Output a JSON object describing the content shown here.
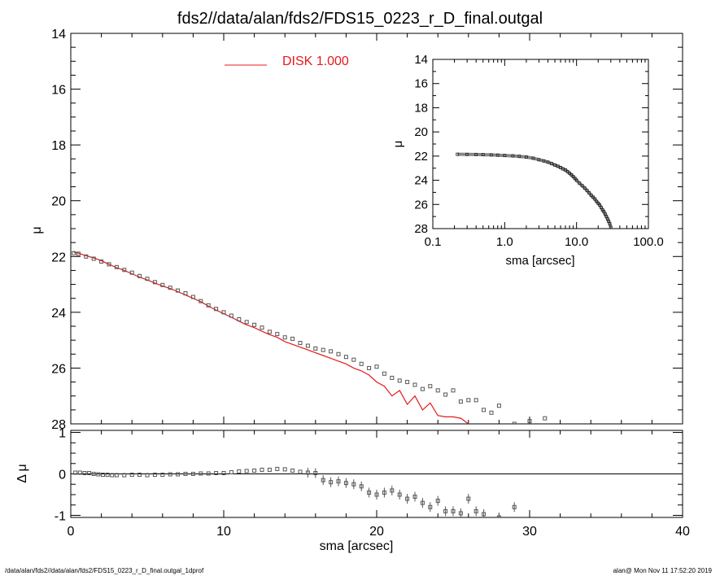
{
  "title": "fds2//data/alan/fds2/FDS15_0223_r_D_final.outgal",
  "footer": {
    "left": "/data/alan/fds2//data/alan/fds2/FDS15_0223_r_D_final.outgal_1dprof",
    "right": "alan@  Mon Nov 11 17:52:20 2019"
  },
  "colors": {
    "model": "#e41a1c",
    "data": "#555555",
    "axis": "#000000"
  },
  "chart_data": [
    {
      "id": "main",
      "type": "scatter",
      "xlabel": "",
      "ylabel": "μ",
      "xlim": [
        0,
        40
      ],
      "ylim": [
        28,
        14
      ],
      "y_inverted": true,
      "yticks": [
        14,
        16,
        18,
        20,
        22,
        24,
        26,
        28
      ],
      "legend": {
        "position": "top-center",
        "entries": [
          {
            "label": "DISK  1.000",
            "color": "#e41a1c"
          }
        ]
      },
      "series": [
        {
          "name": "DISK  1.000",
          "kind": "line",
          "x": [
            0.2,
            0.5,
            1,
            1.5,
            2,
            2.5,
            3,
            3.5,
            4,
            4.5,
            5,
            5.5,
            6,
            6.5,
            7,
            7.5,
            8,
            8.5,
            9,
            9.5,
            10,
            10.5,
            11,
            11.5,
            12,
            12.5,
            13,
            13.5,
            14,
            14.5,
            15,
            15.5,
            16,
            16.5,
            17,
            17.5,
            18,
            18.5,
            19,
            19.5,
            20,
            20.5,
            21,
            21.5,
            22,
            22.5,
            23,
            23.5,
            24,
            24.5,
            25,
            25.5,
            26
          ],
          "y": [
            21.85,
            21.88,
            21.97,
            22.05,
            22.15,
            22.28,
            22.4,
            22.5,
            22.62,
            22.74,
            22.84,
            22.95,
            23.06,
            23.15,
            23.26,
            23.38,
            23.5,
            23.62,
            23.78,
            23.92,
            24.05,
            24.18,
            24.32,
            24.45,
            24.55,
            24.68,
            24.8,
            24.9,
            25.05,
            25.15,
            25.25,
            25.35,
            25.45,
            25.55,
            25.65,
            25.75,
            25.85,
            26.0,
            26.1,
            26.25,
            26.5,
            26.65,
            27.0,
            26.8,
            27.3,
            27.0,
            27.5,
            27.25,
            27.7,
            27.75,
            27.75,
            27.8,
            28.0
          ]
        },
        {
          "name": "",
          "kind": "markers",
          "x": [
            0.2,
            0.5,
            1,
            1.5,
            2,
            2.5,
            3,
            3.5,
            4,
            4.5,
            5,
            5.5,
            6,
            6.5,
            7,
            7.5,
            8,
            8.5,
            9,
            9.5,
            10,
            10.5,
            11,
            11.5,
            12,
            12.5,
            13,
            13.5,
            14,
            14.5,
            15,
            15.5,
            16,
            16.5,
            17,
            17.5,
            18,
            18.5,
            19,
            19.5,
            20,
            20.5,
            21,
            21.5,
            22,
            22.5,
            23,
            23.5,
            24,
            24.5,
            25,
            25.5,
            26,
            26.5,
            27,
            27.5,
            28,
            29,
            30,
            31
          ],
          "y": [
            21.88,
            21.9,
            22.0,
            22.08,
            22.18,
            22.28,
            22.38,
            22.48,
            22.58,
            22.7,
            22.8,
            22.92,
            23.02,
            23.12,
            23.22,
            23.32,
            23.45,
            23.6,
            23.75,
            23.88,
            24.0,
            24.12,
            24.25,
            24.35,
            24.45,
            24.55,
            24.7,
            24.78,
            24.9,
            24.95,
            25.1,
            25.2,
            25.3,
            25.35,
            25.4,
            25.5,
            25.6,
            25.7,
            25.85,
            26.0,
            25.95,
            26.2,
            26.35,
            26.45,
            26.5,
            26.6,
            26.75,
            26.65,
            26.8,
            26.95,
            26.8,
            27.2,
            27.15,
            27.15,
            27.5,
            27.6,
            27.35,
            28.0,
            27.9,
            27.8
          ]
        }
      ]
    },
    {
      "id": "residual",
      "type": "scatter",
      "xlabel": "sma [arcsec]",
      "ylabel": "Δ μ",
      "xlim": [
        0,
        40
      ],
      "ylim": [
        -1.05,
        1.05
      ],
      "xticks": [
        0,
        10,
        20,
        30,
        40
      ],
      "yticks": [
        -1,
        0,
        1
      ],
      "series": [
        {
          "name": "",
          "kind": "markers",
          "x": [
            0.3,
            0.6,
            0.9,
            1.2,
            1.5,
            1.8,
            2.1,
            2.4,
            2.7,
            3,
            3.5,
            4,
            4.5,
            5,
            5.5,
            6,
            6.5,
            7,
            7.5,
            8,
            8.5,
            9,
            9.5,
            10,
            10.5,
            11,
            11.5,
            12,
            12.5,
            13,
            13.5,
            14,
            14.5,
            15,
            15.5,
            16,
            16.5,
            17,
            17.5,
            18,
            18.5,
            19,
            19.5,
            20,
            20.5,
            21,
            21.5,
            22,
            22.5,
            23,
            23.5,
            24,
            24.5,
            25,
            25.5,
            26,
            26.5,
            27,
            28,
            29
          ],
          "y": [
            0.03,
            0.03,
            0.02,
            0.02,
            0.0,
            -0.01,
            -0.02,
            -0.02,
            -0.03,
            -0.03,
            -0.03,
            -0.02,
            -0.02,
            -0.03,
            -0.02,
            -0.02,
            -0.01,
            -0.01,
            0.0,
            0.0,
            0.01,
            0.01,
            0.02,
            0.02,
            0.04,
            0.06,
            0.07,
            0.08,
            0.1,
            0.1,
            0.12,
            0.11,
            0.08,
            0.05,
            0.03,
            0.02,
            -0.15,
            -0.2,
            -0.18,
            -0.22,
            -0.25,
            -0.3,
            -0.45,
            -0.5,
            -0.45,
            -0.4,
            -0.5,
            -0.6,
            -0.55,
            -0.7,
            -0.8,
            -0.65,
            -0.9,
            -0.9,
            -0.95,
            -0.6,
            -0.9,
            -0.97,
            -1.05,
            -0.8
          ]
        }
      ]
    },
    {
      "id": "inset",
      "type": "scatter",
      "x_scale": "log",
      "xlabel": "sma [arcsec]",
      "ylabel": "μ",
      "xlim": [
        0.1,
        100
      ],
      "ylim": [
        28,
        14
      ],
      "xticks": [
        "0.1",
        "1.0",
        "10.0",
        "100.0"
      ],
      "yticks": [
        14,
        16,
        18,
        20,
        22,
        24,
        26,
        28
      ],
      "series": [
        {
          "name": "",
          "kind": "markers",
          "x": [
            0.22,
            0.3,
            0.4,
            0.5,
            0.65,
            0.8,
            1.0,
            1.3,
            1.6,
            2.0,
            2.5,
            3.0,
            3.5,
            4.0,
            4.5,
            5.0,
            5.5,
            6.0,
            6.5,
            7.0,
            7.5,
            8.0,
            8.5,
            9.0,
            9.5,
            10,
            11,
            12,
            13,
            14,
            15,
            16,
            17,
            18,
            19,
            20,
            21,
            22,
            23,
            24,
            25,
            26,
            27,
            28,
            29,
            30
          ],
          "y": [
            21.85,
            21.86,
            21.87,
            21.88,
            21.9,
            21.92,
            21.95,
            21.98,
            22.02,
            22.08,
            22.18,
            22.3,
            22.4,
            22.5,
            22.62,
            22.74,
            22.84,
            22.95,
            23.06,
            23.15,
            23.28,
            23.42,
            23.55,
            23.7,
            23.85,
            24.0,
            24.25,
            24.45,
            24.65,
            24.85,
            25.05,
            25.25,
            25.4,
            25.55,
            25.75,
            25.9,
            26.05,
            26.25,
            26.45,
            26.6,
            26.8,
            27.0,
            27.2,
            27.4,
            27.6,
            27.9
          ]
        }
      ]
    }
  ]
}
